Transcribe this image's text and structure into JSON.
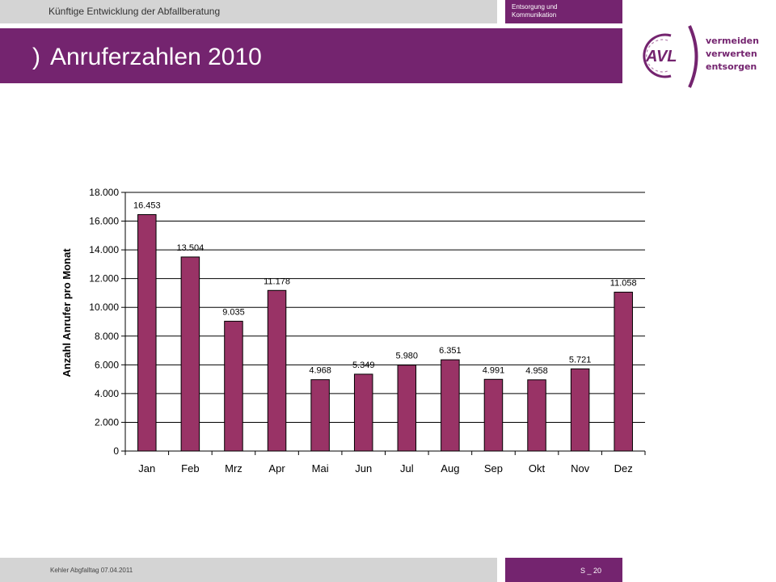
{
  "header": {
    "subtitle": "Künftige Entwicklung der Abfallberatung",
    "department_line1": "Entsorgung und",
    "department_line2": "Kommunikation",
    "paren": ")",
    "title": "Anruferzahlen 2010",
    "accent_color": "#74246f",
    "bar_color": "#993366"
  },
  "logo": {
    "mark": "AVL",
    "word1": "vermeiden",
    "word2": "verwerten",
    "word3": "entsorgen"
  },
  "chart_data": {
    "type": "bar",
    "title": "",
    "xlabel": "",
    "ylabel": "Anzahl Anrufer pro Monat",
    "categories": [
      "Jan",
      "Feb",
      "Mrz",
      "Apr",
      "Mai",
      "Jun",
      "Jul",
      "Aug",
      "Sep",
      "Okt",
      "Nov",
      "Dez"
    ],
    "values": [
      16453,
      13504,
      9035,
      11178,
      4968,
      5349,
      5980,
      6351,
      4991,
      4958,
      5721,
      11058
    ],
    "value_labels": [
      "16.453",
      "13.504",
      "9.035",
      "11.178",
      "4.968",
      "5.349",
      "5.980",
      "6.351",
      "4.991",
      "4.958",
      "5.721",
      "11.058"
    ],
    "ylim": [
      0,
      18000
    ],
    "yticks": [
      0,
      2000,
      4000,
      6000,
      8000,
      10000,
      12000,
      14000,
      16000,
      18000
    ],
    "ytick_labels": [
      "0",
      "2.000",
      "4.000",
      "6.000",
      "8.000",
      "10.000",
      "12.000",
      "14.000",
      "16.000",
      "18.000"
    ],
    "grid": true,
    "legend": "none"
  },
  "footer": {
    "left": "Kehler Abgfalltag 07.04.2011",
    "page": "S _ 20"
  }
}
